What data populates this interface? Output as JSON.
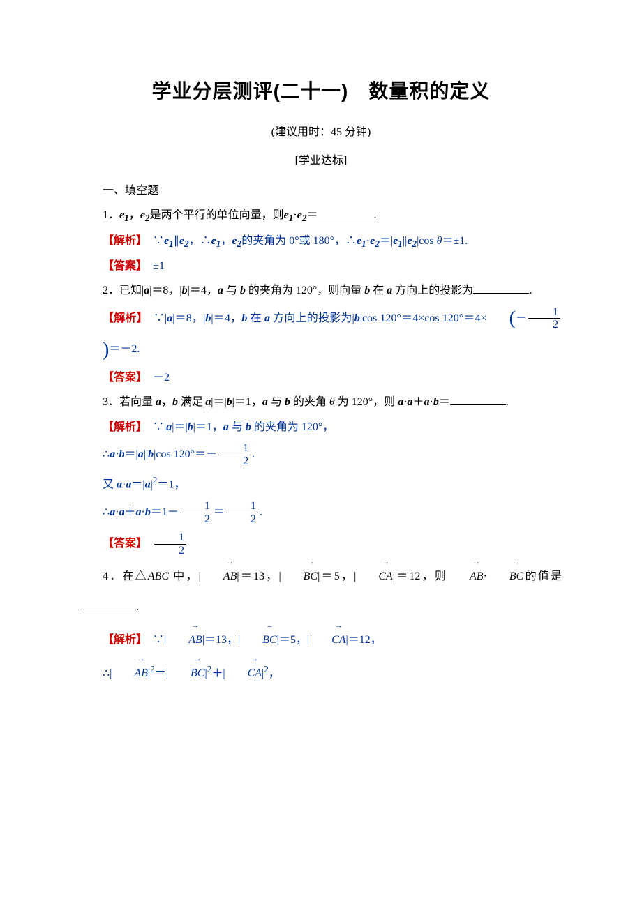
{
  "title": "学业分层测评(二十一)　数量积的定义",
  "subtitle": "(建议用时：45 分钟)",
  "section_label": "[学业达标]",
  "heading1": "一、填空题",
  "q1": {
    "prefix": "1．",
    "suffix1": "是两个平行的单位向量，则",
    "suffix2": "＝",
    "period": "."
  },
  "q1_analysis": {
    "label": "【解析】",
    "t1": "∵",
    "t2": "∥",
    "t3": "，∴",
    "t4": "，",
    "t5": "的夹角为 0°或 180°，∴",
    "t6": "＝|",
    "t7": "||",
    "t8": "|cos ",
    "t9": "＝±1."
  },
  "q1_answer": {
    "label": "【答案】",
    "val": "±1"
  },
  "q2": {
    "prefix": "2．已知|",
    "t1": "|＝8，|",
    "t2": "|＝4，",
    "t3": " 与 ",
    "t4": " 的夹角为 120°，则向量 ",
    "t5": " 在 ",
    "t6": " 方向上的投影为",
    "period": "."
  },
  "q2_analysis": {
    "label": "【解析】",
    "t1": "∵|",
    "t2": "|＝8，|",
    "t3": "|＝4，",
    "t4": " 在 ",
    "t5": " 方向上的投影为|",
    "t6": "|cos 120°＝4×cos 120°＝4×",
    "t7": "＝－2."
  },
  "q2_answer": {
    "label": "【答案】",
    "val": "－2"
  },
  "q3": {
    "prefix": "3．若向量 ",
    "t1": "，",
    "t2": " 满足|",
    "t3": "|＝|",
    "t4": "|＝1，",
    "t5": " 与 ",
    "t6": " 的夹角 ",
    "t7": " 为 120°，则 ",
    "t8": "＋",
    "t9": "＝",
    "period": "."
  },
  "q3_analysis": {
    "label": "【解析】",
    "line1a": "∵|",
    "line1b": "|＝|",
    "line1c": "|＝1，",
    "line1d": " 与 ",
    "line1e": " 的夹角为 120°，",
    "line2a": "∴",
    "line2b": "＝|",
    "line2c": "||",
    "line2d": "|cos 120°＝－",
    "line3a": "又 ",
    "line3b": "＝|",
    "line3c": "|",
    "line3d": "＝1，",
    "line4a": "∴",
    "line4b": "＋",
    "line4c": "＝1－",
    "line4d": "＝"
  },
  "q3_answer": {
    "label": "【答案】"
  },
  "q4": {
    "prefix": "4．在△",
    "t1": " 中，|",
    "t2": "|＝13，|",
    "t3": "|＝5，|",
    "t4": "|＝12，则",
    "t5": "的值是",
    "period": "."
  },
  "q4_analysis": {
    "label": "【解析】",
    "line1a": "∵|",
    "line1b": "|＝13，|",
    "line1c": "|＝5，|",
    "line1d": "|＝12，",
    "line2a": "∴|",
    "line2b": "|",
    "line2c": "＝|",
    "line2d": "|",
    "line2e": "＋|",
    "line2f": "|",
    "line2g": "，"
  },
  "sym": {
    "e1": "e",
    "e2": "e",
    "sub1": "1",
    "sub2": "2",
    "a": "a",
    "b": "b",
    "theta": "θ",
    "ABC": "ABC",
    "AB": "AB",
    "BC": "BC",
    "CA": "CA",
    "dot": "·",
    "sq": "2",
    "comma_cn": "，",
    "half_num": "1",
    "half_den": "2",
    "neg": "－",
    "period_cn": "."
  }
}
